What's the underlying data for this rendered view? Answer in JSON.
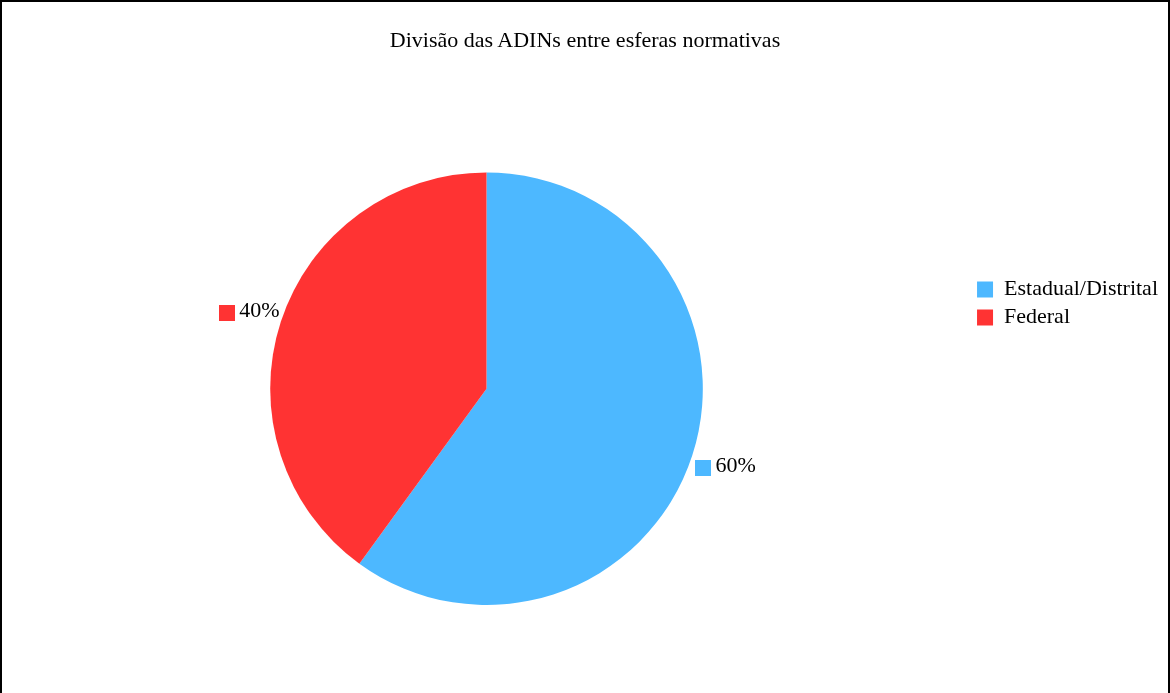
{
  "chart_data": {
    "type": "pie",
    "title": "Divisão das ADINs entre esferas normativas",
    "categories": [
      "Estadual/Distrital",
      "Federal"
    ],
    "values": [
      60,
      40
    ],
    "colors": [
      "#4db8ff",
      "#ff3333"
    ],
    "value_labels": [
      "60%",
      "40%"
    ],
    "legend": "right"
  }
}
